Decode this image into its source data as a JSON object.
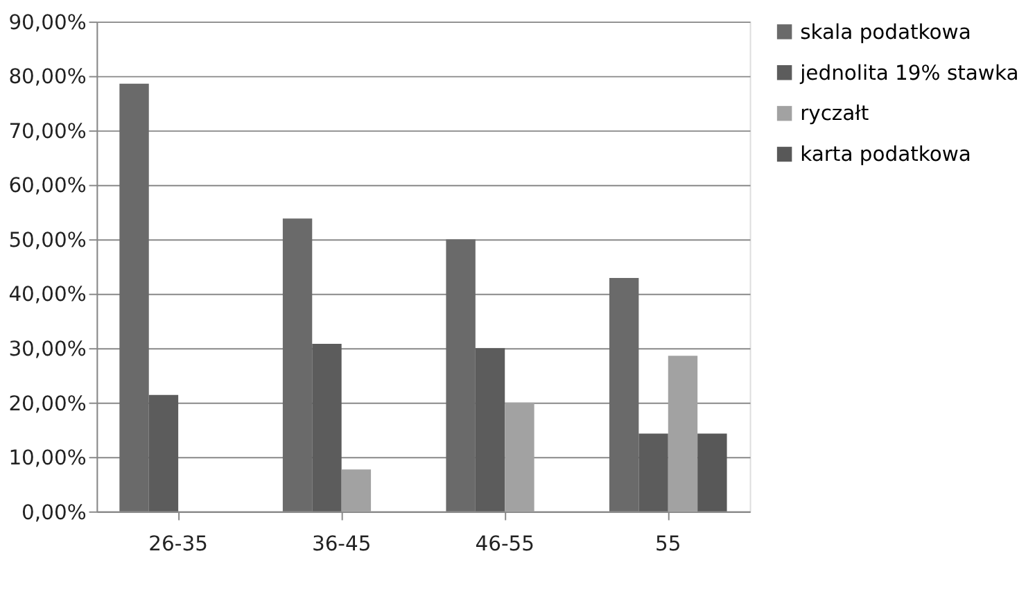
{
  "chart_data": {
    "type": "bar",
    "categories": [
      "26-35",
      "36-45",
      "46-55",
      "55"
    ],
    "series": [
      {
        "name": "skala podatkowa",
        "color": "#6a6a6a",
        "values": [
          78.6,
          53.8,
          50,
          42.9
        ]
      },
      {
        "name": "jednolita 19% stawka",
        "color": "#5c5c5c",
        "values": [
          21.4,
          30.8,
          30,
          14.3
        ]
      },
      {
        "name": "ryczałt",
        "color": "#a2a2a2",
        "values": [
          0,
          7.7,
          20,
          28.6
        ]
      },
      {
        "name": "karta podatkowa",
        "color": "#585858",
        "values": [
          0,
          0,
          0,
          14.3
        ]
      }
    ],
    "ylim": [
      0,
      90
    ],
    "yticks": [
      {
        "value": 0,
        "label": "0,00%"
      },
      {
        "value": 10,
        "label": "10,00%"
      },
      {
        "value": 20,
        "label": "20,00%"
      },
      {
        "value": 30,
        "label": "30,00%"
      },
      {
        "value": 40,
        "label": "40,00%"
      },
      {
        "value": 50,
        "label": "50,00%"
      },
      {
        "value": 60,
        "label": "60,00%"
      },
      {
        "value": 70,
        "label": "70,00%"
      },
      {
        "value": 80,
        "label": "80,00%"
      },
      {
        "value": 90,
        "label": "90,00%"
      }
    ],
    "grid": "y",
    "legend": "right"
  }
}
